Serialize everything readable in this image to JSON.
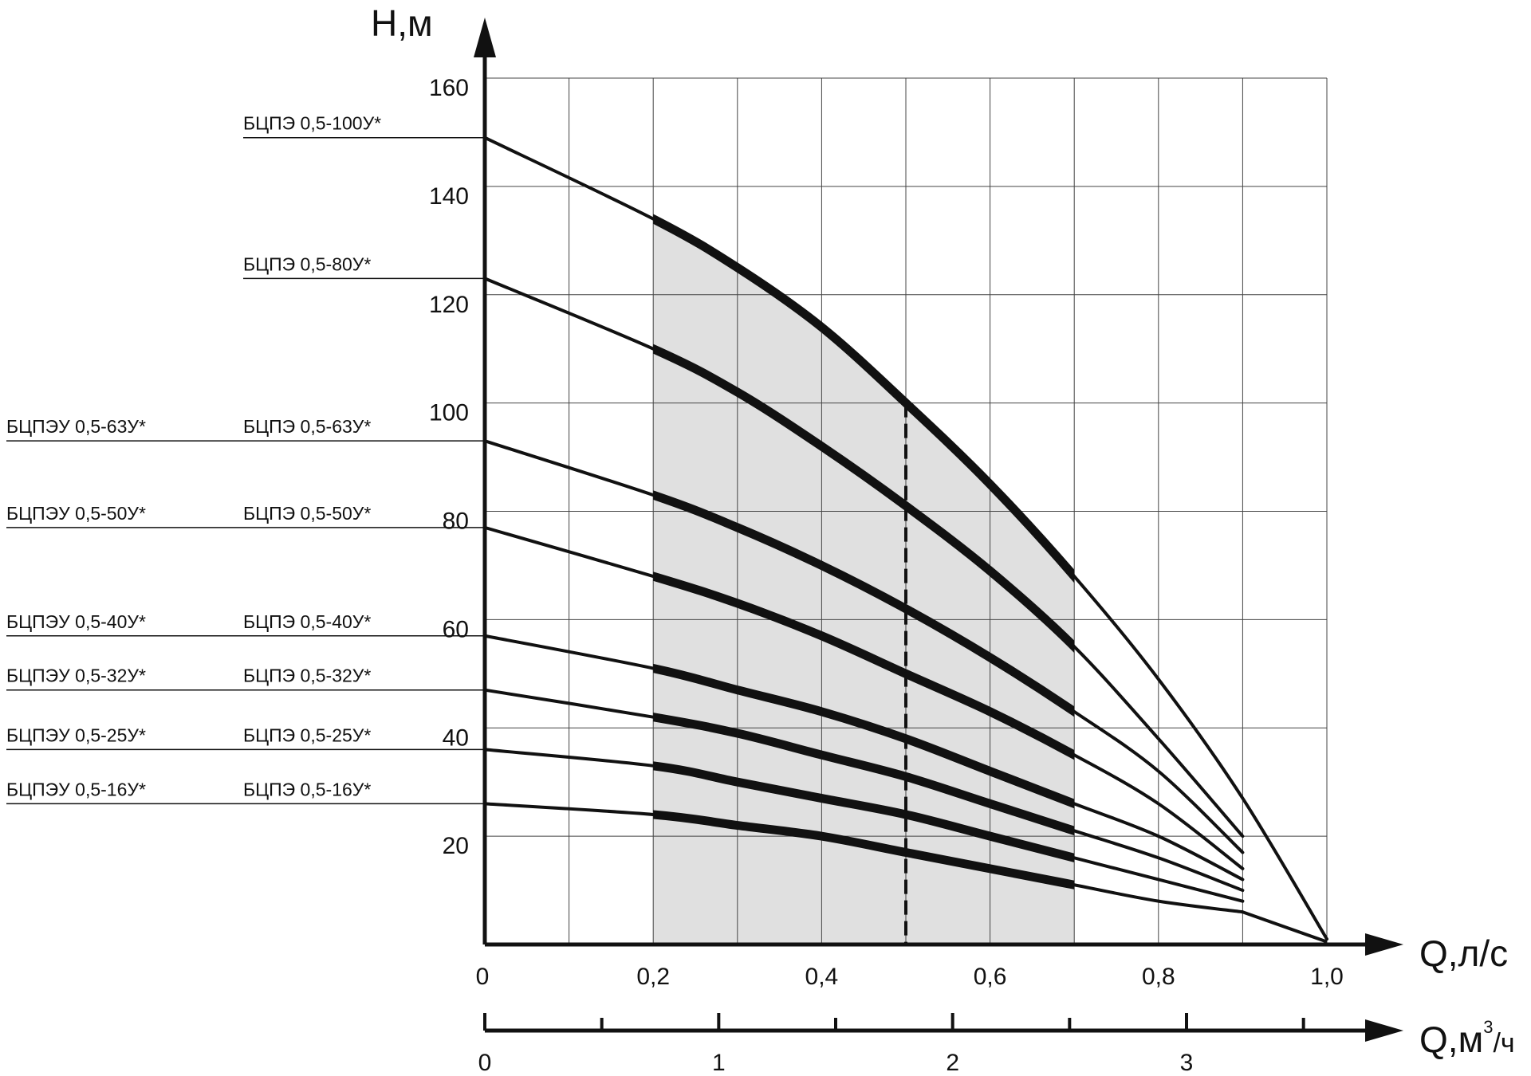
{
  "chart_data": {
    "type": "line",
    "title": "",
    "ylabel": "H,м",
    "xlabel": "Q,л/с",
    "xlabel2": {
      "prefix": "Q,",
      "unit": "м",
      "sup": "3",
      "suffix": "/ч"
    },
    "xlim": [
      0,
      1.0
    ],
    "ylim": [
      0,
      160
    ],
    "x_ticks": [
      "0",
      "0,2",
      "0,4",
      "0,6",
      "0,8",
      "1,0"
    ],
    "y_ticks": [
      "20",
      "40",
      "60",
      "80",
      "100",
      "120",
      "140",
      "160"
    ],
    "x2_ticks": [
      "0",
      "1",
      "2",
      "3"
    ],
    "grid": true,
    "working_range": [
      0.2,
      0.7
    ],
    "nominal_flow": 0.5,
    "shaded_color": "#e0e0e0",
    "line_color": "#111111",
    "series": [
      {
        "name": "БЦПЭ 0,5-100У*",
        "label_left": "",
        "x": [
          0,
          0.2,
          0.3,
          0.4,
          0.5,
          0.6,
          0.7,
          0.8,
          0.9,
          1.0
        ],
        "y": [
          149,
          134,
          125,
          114,
          100,
          85,
          68,
          49,
          27,
          1
        ]
      },
      {
        "name": "БЦПЭ 0,5-80У*",
        "label_left": "",
        "x": [
          0,
          0.2,
          0.3,
          0.4,
          0.5,
          0.6,
          0.7,
          0.8,
          0.9
        ],
        "y": [
          123,
          110,
          102,
          92,
          81,
          69,
          55,
          38,
          20
        ]
      },
      {
        "name": "БЦПЭ 0,5-63У*",
        "label_left": "БЦПЭУ 0,5-63У*",
        "x": [
          0,
          0.2,
          0.3,
          0.4,
          0.5,
          0.6,
          0.7,
          0.8,
          0.9
        ],
        "y": [
          93,
          83,
          77,
          70,
          62,
          53,
          43,
          32,
          17
        ]
      },
      {
        "name": "БЦПЭ 0,5-50У*",
        "label_left": "БЦПЭУ 0,5-50У*",
        "x": [
          0,
          0.2,
          0.3,
          0.4,
          0.5,
          0.6,
          0.7,
          0.8,
          0.9
        ],
        "y": [
          77,
          68,
          63,
          57,
          50,
          43,
          35,
          26,
          14
        ]
      },
      {
        "name": "БЦПЭ 0,5-40У*",
        "label_left": "БЦПЭУ 0,5-40У*",
        "x": [
          0,
          0.2,
          0.3,
          0.4,
          0.5,
          0.6,
          0.7,
          0.8,
          0.9
        ],
        "y": [
          57,
          51,
          47,
          43,
          38,
          32,
          26,
          20,
          12
        ]
      },
      {
        "name": "БЦПЭ 0,5-32У*",
        "label_left": "БЦПЭУ 0,5-32У*",
        "x": [
          0,
          0.2,
          0.3,
          0.4,
          0.5,
          0.6,
          0.7,
          0.8,
          0.9
        ],
        "y": [
          47,
          42,
          39,
          35,
          31,
          26,
          21,
          16,
          10
        ]
      },
      {
        "name": "БЦПЭ 0,5-25У*",
        "label_left": "БЦПЭУ 0,5-25У*",
        "x": [
          0,
          0.2,
          0.3,
          0.4,
          0.5,
          0.6,
          0.7,
          0.8,
          0.9
        ],
        "y": [
          36,
          33,
          30,
          27,
          24,
          20,
          16,
          12,
          8
        ]
      },
      {
        "name": "БЦПЭ 0,5-16У*",
        "label_left": "БЦПЭУ 0,5-16У*",
        "x": [
          0,
          0.2,
          0.3,
          0.4,
          0.5,
          0.6,
          0.7,
          0.8,
          0.9
        ],
        "y": [
          26,
          24,
          22,
          20,
          17,
          14,
          11,
          8,
          6
        ]
      }
    ]
  }
}
